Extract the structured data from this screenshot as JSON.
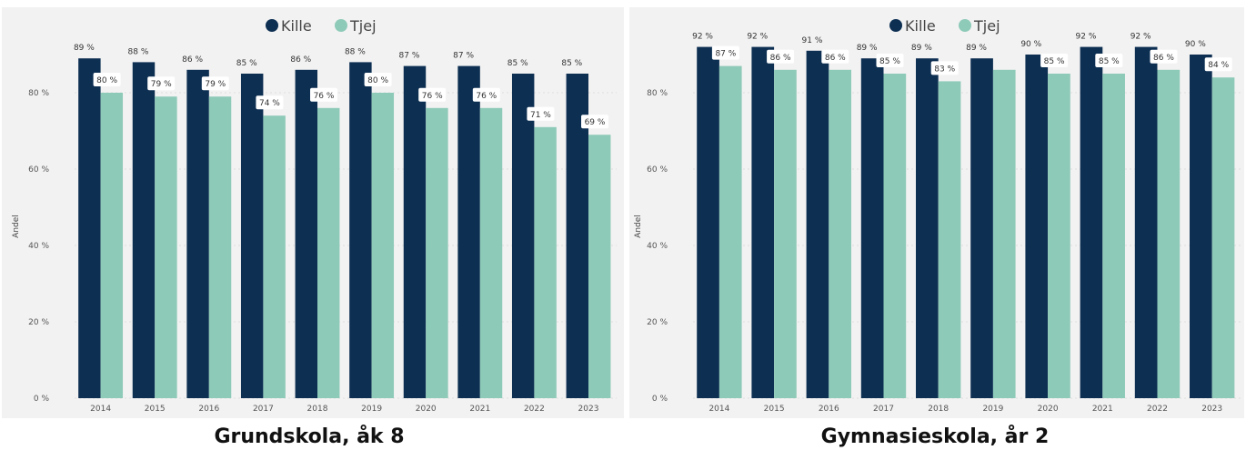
{
  "colors": {
    "kille": "#0d2f52",
    "tjej": "#8ecab8",
    "grid": "#dddddd"
  },
  "chart_data": [
    {
      "type": "bar",
      "title": "Grundskola, åk 8",
      "ylabel": "Andel",
      "ylim": [
        0,
        90
      ],
      "yticks": [
        "0 %",
        "20 %",
        "40 %",
        "60 %",
        "80 %"
      ],
      "legend_position": "top-center",
      "categories": [
        "2014",
        "2015",
        "2016",
        "2017",
        "2018",
        "2019",
        "2020",
        "2021",
        "2022",
        "2023"
      ],
      "series": [
        {
          "name": "Kille",
          "values": [
            89,
            88,
            86,
            85,
            86,
            88,
            87,
            87,
            85,
            85
          ],
          "labels": [
            "89 %",
            "88 %",
            "86 %",
            "85 %",
            "86 %",
            "88 %",
            "87 %",
            "87 %",
            "85 %",
            "85 %"
          ]
        },
        {
          "name": "Tjej",
          "values": [
            80,
            79,
            79,
            74,
            76,
            80,
            76,
            76,
            71,
            69
          ],
          "labels": [
            "80 %",
            "79 %",
            "79 %",
            "74 %",
            "76 %",
            "80 %",
            "76 %",
            "76 %",
            "71 %",
            "69 %"
          ]
        }
      ]
    },
    {
      "type": "bar",
      "title": "Gymnasieskola, år 2",
      "ylabel": "Andel",
      "ylim": [
        0,
        90
      ],
      "yticks": [
        "0 %",
        "20 %",
        "40 %",
        "60 %",
        "80 %"
      ],
      "legend_position": "top-center",
      "categories": [
        "2014",
        "2015",
        "2016",
        "2017",
        "2018",
        "2019",
        "2020",
        "2021",
        "2022",
        "2023"
      ],
      "series": [
        {
          "name": "Kille",
          "values": [
            92,
            92,
            91,
            89,
            89,
            89,
            90,
            92,
            92,
            90
          ],
          "labels": [
            "92 %",
            "92 %",
            "91 %",
            "89 %",
            "89 %",
            "89 %",
            "90 %",
            "92 %",
            "92 %",
            "90 %"
          ]
        },
        {
          "name": "Tjej",
          "values": [
            87,
            86,
            86,
            85,
            83,
            86,
            85,
            85,
            86,
            84
          ],
          "labels": [
            "87 %",
            "86 %",
            "86 %",
            "85 %",
            "83 %",
            "",
            "85 %",
            "85 %",
            "86 %",
            "84 %"
          ]
        }
      ]
    }
  ]
}
